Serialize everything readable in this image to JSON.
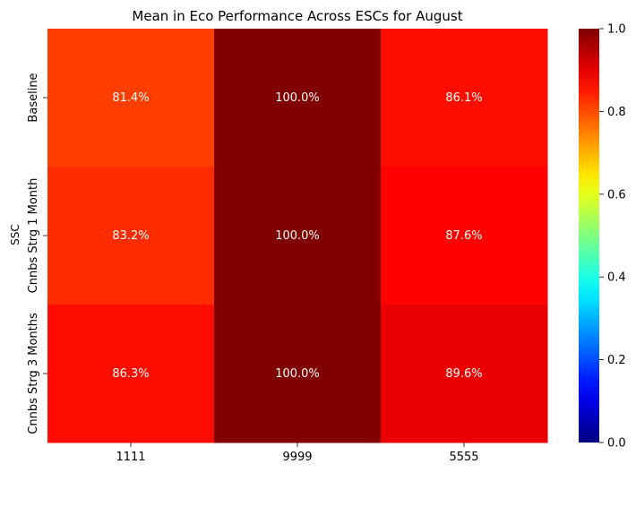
{
  "chart_data": {
    "type": "heatmap",
    "title": "Mean in Eco Performance Across ESCs for August",
    "xlabel": "",
    "ylabel": "SSC",
    "x_categories": [
      "1111",
      "9999",
      "5555"
    ],
    "y_categories": [
      "Baseline",
      "Cnnbs Strg 1 Month",
      "Cnnbs Strg 3 Months"
    ],
    "values": [
      [
        0.814,
        1.0,
        0.861
      ],
      [
        0.832,
        1.0,
        0.876
      ],
      [
        0.863,
        1.0,
        0.896
      ]
    ],
    "annotations": [
      [
        "81.4%",
        "100.0%",
        "86.1%"
      ],
      [
        "83.2%",
        "100.0%",
        "87.6%"
      ],
      [
        "86.3%",
        "100.0%",
        "89.6%"
      ]
    ],
    "colormap": "jet",
    "vmin": 0.0,
    "vmax": 1.0,
    "colorbar_ticks": [
      "0.0",
      "0.2",
      "0.4",
      "0.6",
      "0.8",
      "1.0"
    ],
    "grid": false,
    "legend": "colorbar-right"
  }
}
